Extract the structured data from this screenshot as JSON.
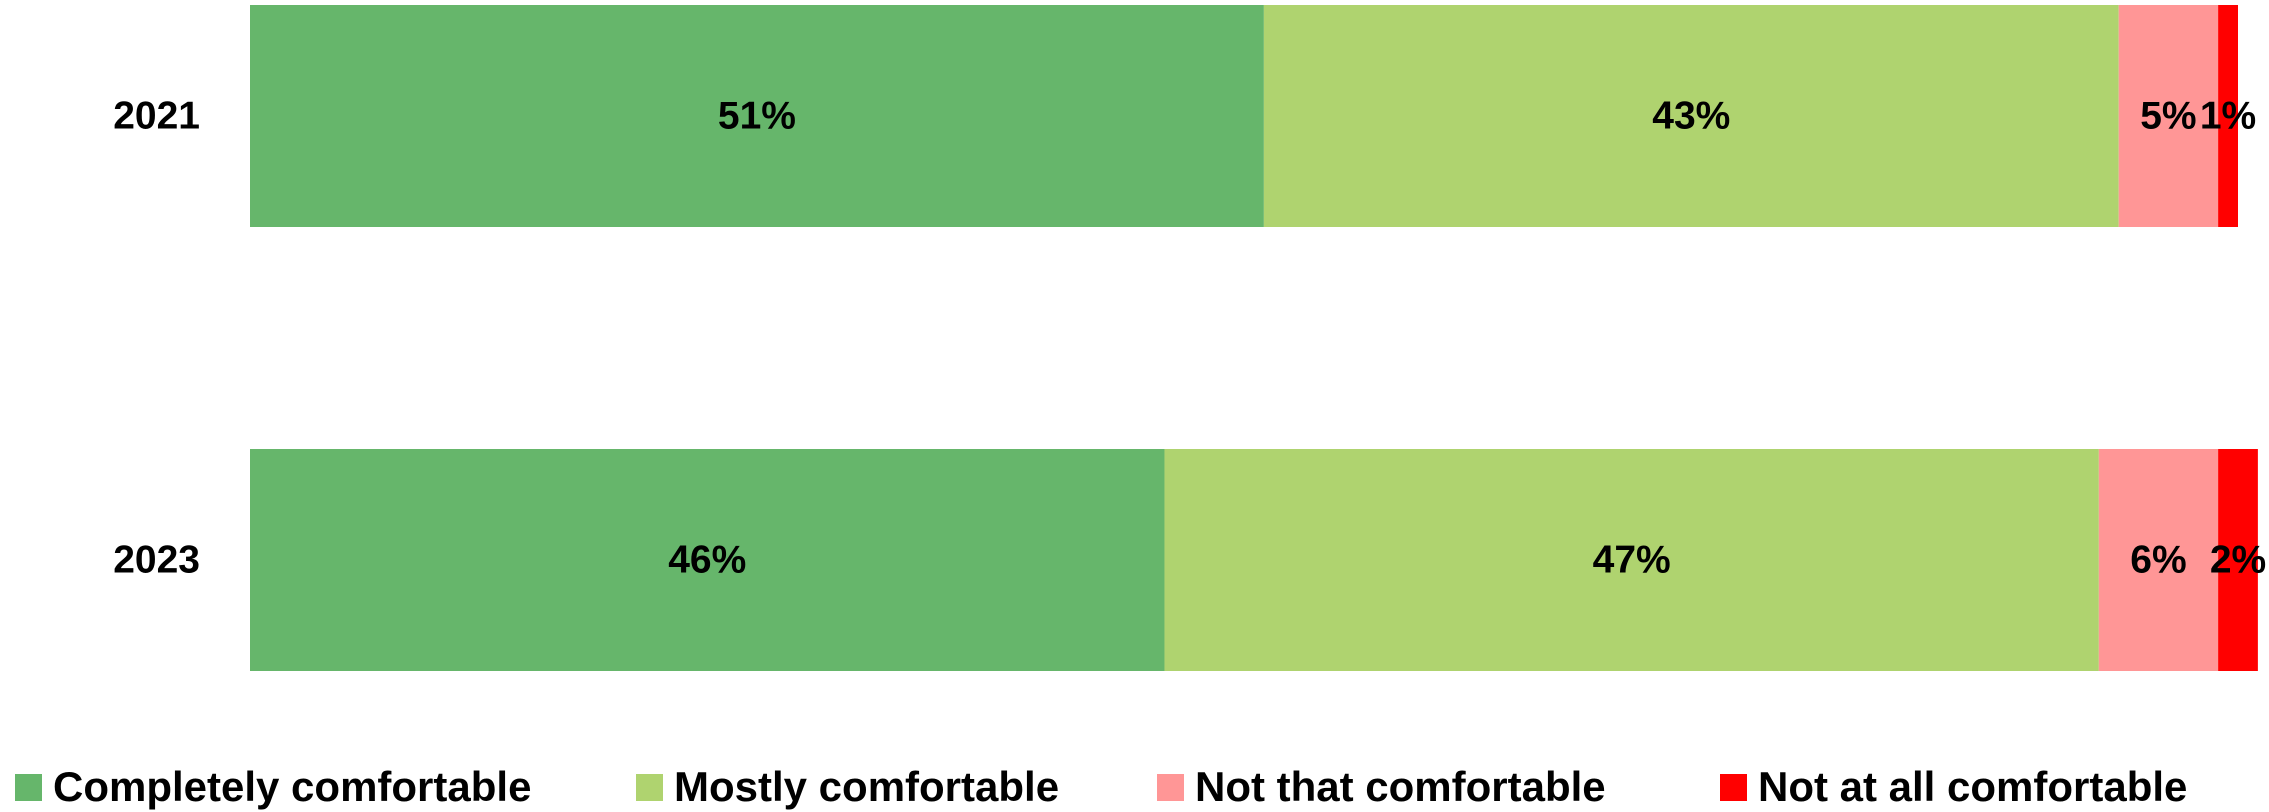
{
  "chart_data": {
    "type": "bar",
    "orientation": "horizontal",
    "stacked": true,
    "categories": [
      "2021",
      "2023"
    ],
    "series": [
      {
        "name": "Completely comfortable",
        "values": [
          51,
          46
        ],
        "labels": [
          "51%",
          "46%"
        ],
        "color": "#66b66b"
      },
      {
        "name": "Mostly comfortable",
        "values": [
          43,
          47
        ],
        "labels": [
          "43%",
          "47%"
        ],
        "color": "#afd36f"
      },
      {
        "name": "Not that comfortable",
        "values": [
          5,
          6
        ],
        "labels": [
          "5%",
          "6%"
        ],
        "color": "#ff9696"
      },
      {
        "name": "Not at all comfortable",
        "values": [
          1,
          2
        ],
        "labels": [
          "1%",
          "2%"
        ],
        "color": "#ff0000"
      }
    ],
    "xlim": [
      0,
      100
    ],
    "grid": false,
    "legend_position": "bottom"
  }
}
